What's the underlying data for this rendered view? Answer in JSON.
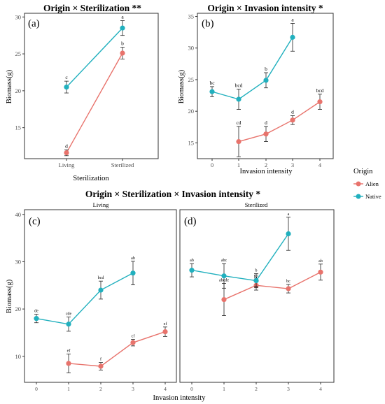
{
  "colors": {
    "alien": "#e8736c",
    "native": "#21b0be"
  },
  "legend": {
    "title": "Origin",
    "items": [
      {
        "label": "Alien",
        "color": "#e8736c"
      },
      {
        "label": "Native",
        "color": "#21b0be"
      }
    ]
  },
  "figure": {
    "bottom_title": "Origin × Sterilization × Invasion intensity *"
  },
  "chart_data": [
    {
      "id": "a",
      "panel_label": "(a)",
      "type": "line",
      "title": "Origin × Sterilization **",
      "xlabel": "Sterilization",
      "ylabel": "Biomass(g)",
      "categories": [
        "Living",
        "Sterilized"
      ],
      "ylim": [
        10.8,
        30.5
      ],
      "yticks": [
        15,
        20,
        25,
        30
      ],
      "series": [
        {
          "name": "Alien",
          "values": [
            11.6,
            25.1
          ],
          "err": [
            0.4,
            0.8
          ],
          "letters": [
            "d",
            "b"
          ]
        },
        {
          "name": "Native",
          "values": [
            20.5,
            28.5
          ],
          "err": [
            0.8,
            1.0
          ],
          "letters": [
            "c",
            "a"
          ]
        }
      ]
    },
    {
      "id": "b",
      "panel_label": "(b)",
      "type": "line",
      "title": "Origin × Invasion intensity *",
      "xlabel": "Invasion intensity",
      "ylabel": "Biomass(g)",
      "x": [
        0,
        1,
        2,
        3,
        4
      ],
      "ylim": [
        12.5,
        35.5
      ],
      "yticks": [
        15,
        20,
        25,
        30,
        35
      ],
      "series": [
        {
          "name": "Alien",
          "x": [
            1,
            2,
            3,
            4
          ],
          "values": [
            15.2,
            16.4,
            18.6,
            21.5
          ],
          "err": [
            2.4,
            1.2,
            0.7,
            1.2
          ],
          "letters": [
            "cd",
            "d",
            "d",
            "bcd"
          ]
        },
        {
          "name": "Native",
          "x": [
            0,
            1,
            2,
            3
          ],
          "values": [
            23.1,
            21.9,
            24.9,
            31.7
          ],
          "err": [
            0.8,
            1.6,
            1.2,
            2.2
          ],
          "letters": [
            "bc",
            "bcd",
            "b",
            "a"
          ]
        }
      ]
    },
    {
      "id": "c",
      "panel_label": "(c)",
      "type": "line",
      "strip": "Living",
      "ylabel": "Biomass(g)",
      "x": [
        0,
        1,
        2,
        3,
        4
      ],
      "ylim": [
        4.5,
        41
      ],
      "yticks": [
        10,
        20,
        30,
        40
      ],
      "series": [
        {
          "name": "Alien",
          "x": [
            1,
            2,
            3,
            4
          ],
          "values": [
            8.5,
            7.9,
            12.9,
            15.2
          ],
          "err": [
            2.0,
            0.8,
            0.7,
            1.0
          ],
          "letters": [
            "ef",
            "f",
            "cf",
            "ef"
          ]
        },
        {
          "name": "Native",
          "x": [
            0,
            1,
            2,
            3
          ],
          "values": [
            18.0,
            16.8,
            24.0,
            27.6
          ],
          "err": [
            0.9,
            1.5,
            1.9,
            2.5
          ],
          "letters": [
            "de",
            "cde",
            "bcd",
            "ab"
          ]
        }
      ]
    },
    {
      "id": "d",
      "panel_label": "(d)",
      "type": "line",
      "strip": "Sterilized",
      "x": [
        0,
        1,
        2,
        3,
        4
      ],
      "ylim": [
        4.5,
        41
      ],
      "series": [
        {
          "name": "Alien",
          "x": [
            1,
            2,
            3,
            4
          ],
          "values": [
            22.0,
            25.0,
            24.3,
            27.8
          ],
          "err": [
            3.4,
            1.0,
            0.9,
            1.7
          ],
          "letters": [
            "abcde",
            "bc",
            "bc",
            "ab"
          ]
        },
        {
          "name": "Native",
          "x": [
            0,
            1,
            2
          ],
          "values": [
            28.2,
            27.0,
            26.0
          ],
          "err": [
            1.4,
            2.6,
            1.5
          ],
          "letters": [
            "ab",
            "abc",
            "b"
          ]
        },
        {
          "name": "Native",
          "x": [
            2,
            3
          ],
          "values": [
            26.0,
            35.9
          ],
          "err": [
            1.2,
            3.5
          ],
          "letters": [
            "",
            "a"
          ]
        }
      ]
    }
  ],
  "shared_axes": {
    "cd_xlabel": "Invasion intensity"
  }
}
